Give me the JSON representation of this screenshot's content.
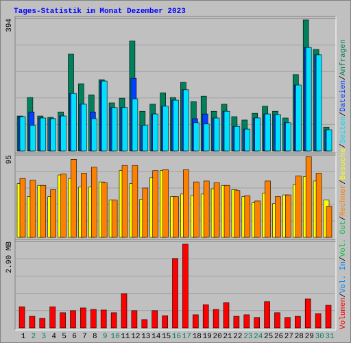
{
  "title": "Tages-Statistik im Monat Dezember 2023",
  "legend_separator": "/",
  "chart_data": [
    {
      "type": "bar",
      "ylim": [
        0,
        394
      ],
      "yticks": [
        394
      ],
      "series": [
        {
          "name": "Anfragen",
          "color": "#00805c",
          "values": [
            104,
            159,
            104,
            100,
            116,
            288,
            200,
            167,
            212,
            143,
            157,
            327,
            118,
            139,
            173,
            159,
            204,
            147,
            163,
            118,
            139,
            102,
            92,
            112,
            133,
            118,
            98,
            227,
            390,
            302,
            71
          ]
        },
        {
          "name": "Dateien",
          "color": "#0040ff",
          "values": [
            102,
            116,
            98,
            96,
            104,
            171,
            139,
            116,
            208,
            129,
            129,
            216,
            76,
            110,
            133,
            151,
            182,
            96,
            110,
            98,
            118,
            73,
            65,
            98,
            110,
            108,
            84,
            196,
            308,
            286,
            63
          ]
        },
        {
          "name": "Seiten",
          "color": "#00e0ff",
          "values": [
            102,
            76,
            98,
            96,
            104,
            171,
            139,
            96,
            208,
            129,
            129,
            155,
            76,
            110,
            133,
            151,
            182,
            84,
            80,
            98,
            118,
            73,
            65,
            98,
            110,
            108,
            84,
            196,
            308,
            286,
            63
          ]
        }
      ]
    },
    {
      "type": "bar",
      "ylim": [
        0,
        95
      ],
      "yticks": [
        95
      ],
      "series": [
        {
          "name": "Besuche",
          "color": "#ffff00",
          "values": [
            62,
            47,
            60,
            47,
            72,
            68,
            58,
            58,
            64,
            43,
            77,
            62,
            44,
            69,
            77,
            47,
            50,
            48,
            50,
            56,
            60,
            55,
            47,
            40,
            51,
            39,
            49,
            61,
            70,
            65,
            43
          ]
        },
        {
          "name": "Rechner",
          "color": "#ff8000",
          "values": [
            68,
            66,
            60,
            55,
            73,
            90,
            74,
            81,
            63,
            43,
            83,
            83,
            57,
            77,
            78,
            47,
            78,
            64,
            65,
            63,
            60,
            54,
            48,
            42,
            65,
            47,
            49,
            71,
            93,
            74,
            36
          ]
        }
      ]
    },
    {
      "type": "bar",
      "ylim": [
        0,
        2.9
      ],
      "yticks": [
        {
          "value": 2.9,
          "label": "2.90 MB"
        }
      ],
      "categories": [
        "1",
        "2",
        "3",
        "4",
        "5",
        "6",
        "7",
        "8",
        "9",
        "10",
        "11",
        "12",
        "13",
        "14",
        "15",
        "16",
        "17",
        "18",
        "19",
        "20",
        "21",
        "22",
        "23",
        "24",
        "25",
        "26",
        "27",
        "28",
        "29",
        "30",
        "31"
      ],
      "category_colors": [
        "#000000",
        "#00805c",
        "#00805c",
        "#000000",
        "#000000",
        "#000000",
        "#000000",
        "#000000",
        "#00805c",
        "#00805c",
        "#000000",
        "#000000",
        "#000000",
        "#000000",
        "#000000",
        "#00805c",
        "#00805c",
        "#000000",
        "#000000",
        "#000000",
        "#000000",
        "#000000",
        "#00805c",
        "#00805c",
        "#000000",
        "#000000",
        "#000000",
        "#000000",
        "#000000",
        "#00805c",
        "#00805c"
      ],
      "series": [
        {
          "name": "Volumen",
          "color": "#ff0000",
          "values": [
            0.71,
            0.39,
            0.32,
            0.71,
            0.51,
            0.58,
            0.67,
            0.62,
            0.6,
            0.51,
            1.15,
            0.58,
            0.28,
            0.58,
            0.41,
            2.33,
            2.81,
            0.44,
            0.78,
            0.62,
            0.85,
            0.39,
            0.44,
            0.35,
            0.88,
            0.51,
            0.35,
            0.39,
            0.97,
            0.48,
            0.76
          ]
        }
      ],
      "legend_extra": [
        {
          "name": "Vol. In",
          "color": "#0080ff"
        },
        {
          "name": "Vol. Out",
          "color": "#00c040"
        }
      ]
    }
  ]
}
